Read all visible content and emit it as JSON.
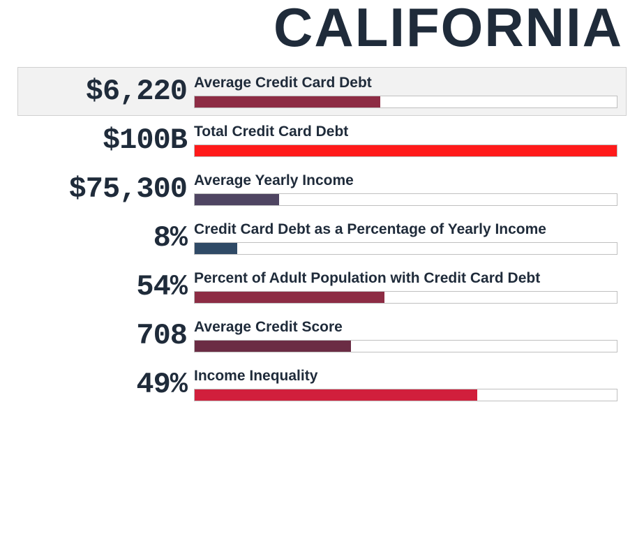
{
  "title": {
    "text": "CALIFORNIA",
    "color": "#1f2b3a",
    "fontsize": 78
  },
  "typography": {
    "valueFontsize": 42,
    "valueColor": "#1f2b3a",
    "labelFontsize": 21,
    "labelColor": "#1f2b3a",
    "valueFontFamily": "Courier New, monospace"
  },
  "barTrack": {
    "height": 18,
    "background": "#ffffff",
    "border": "#bfbfbf"
  },
  "highlightRow": {
    "background": "#f2f2f2",
    "border": "#d0d0d0"
  },
  "rows": [
    {
      "id": "avg-cc-debt",
      "value": "$6,220",
      "label": "Average Credit Card Debt",
      "barPercent": 44,
      "barColor": "#8d2c44",
      "highlight": true
    },
    {
      "id": "total-cc-debt",
      "value": "$100B",
      "label": "Total Credit Card Debt",
      "barPercent": 100,
      "barColor": "#ff1a1a",
      "highlight": false
    },
    {
      "id": "avg-yearly-income",
      "value": "$75,300",
      "label": "Average Yearly Income",
      "barPercent": 20,
      "barColor": "#4f4562",
      "highlight": false
    },
    {
      "id": "cc-debt-pct-income",
      "value": "8%",
      "label": "Credit Card Debt as a Percentage of Yearly Income",
      "barPercent": 10,
      "barColor": "#2f4a66",
      "highlight": false
    },
    {
      "id": "pct-adult-with-debt",
      "value": "54%",
      "label": "Percent of Adult Population with Credit Card Debt",
      "barPercent": 45,
      "barColor": "#8d2c44",
      "highlight": false
    },
    {
      "id": "avg-credit-score",
      "value": "708",
      "label": "Average Credit Score",
      "barPercent": 37,
      "barColor": "#6b2c44",
      "highlight": false
    },
    {
      "id": "income-inequality",
      "value": "49%",
      "label": "Income Inequality",
      "barPercent": 67,
      "barColor": "#d11f3c",
      "highlight": false
    }
  ]
}
